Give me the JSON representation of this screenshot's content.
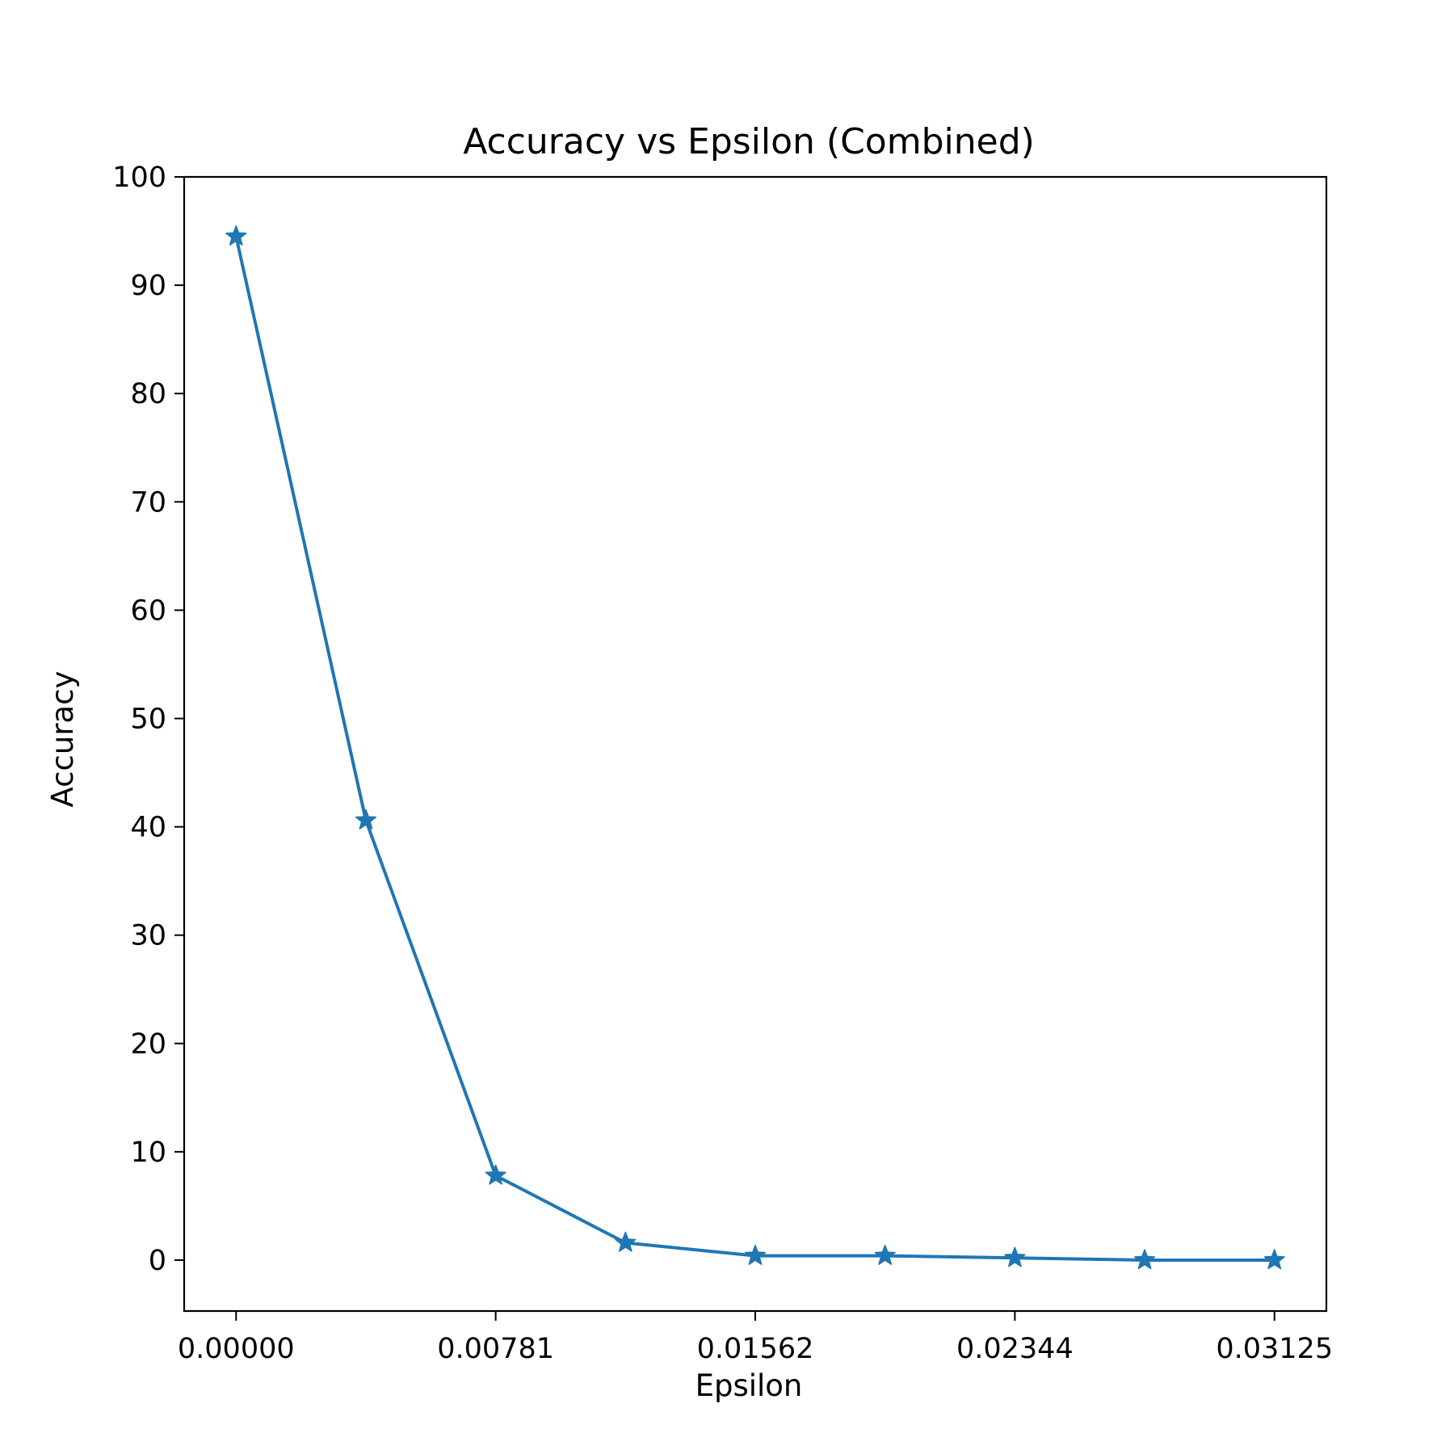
{
  "chart_data": {
    "type": "line",
    "title": "Accuracy vs Epsilon (Combined)",
    "xlabel": "Epsilon",
    "ylabel": "Accuracy",
    "x": [
      0.0,
      0.00390625,
      0.0078125,
      0.01171875,
      0.015625,
      0.01953125,
      0.0234375,
      0.02734375,
      0.03125
    ],
    "series": [
      {
        "values": [
          94.5,
          40.6,
          7.8,
          1.6,
          0.4,
          0.4,
          0.2,
          0.0,
          0.0
        ],
        "color": "#1f77b4",
        "marker": "star"
      }
    ],
    "xticks": [
      0.0,
      0.0078125,
      0.015625,
      0.0234375,
      0.03125
    ],
    "xtick_labels": [
      "0.00000",
      "0.00781",
      "0.01562",
      "0.02344",
      "0.03125"
    ],
    "yticks": [
      0,
      10,
      20,
      30,
      40,
      50,
      60,
      70,
      80,
      90,
      100
    ],
    "ytick_labels": [
      "0",
      "10",
      "20",
      "30",
      "40",
      "50",
      "60",
      "70",
      "80",
      "90",
      "100"
    ],
    "xlim": [
      -0.0015625,
      0.0328125
    ],
    "ylim": [
      -4.7,
      100
    ],
    "grid": false,
    "legend": "none"
  }
}
